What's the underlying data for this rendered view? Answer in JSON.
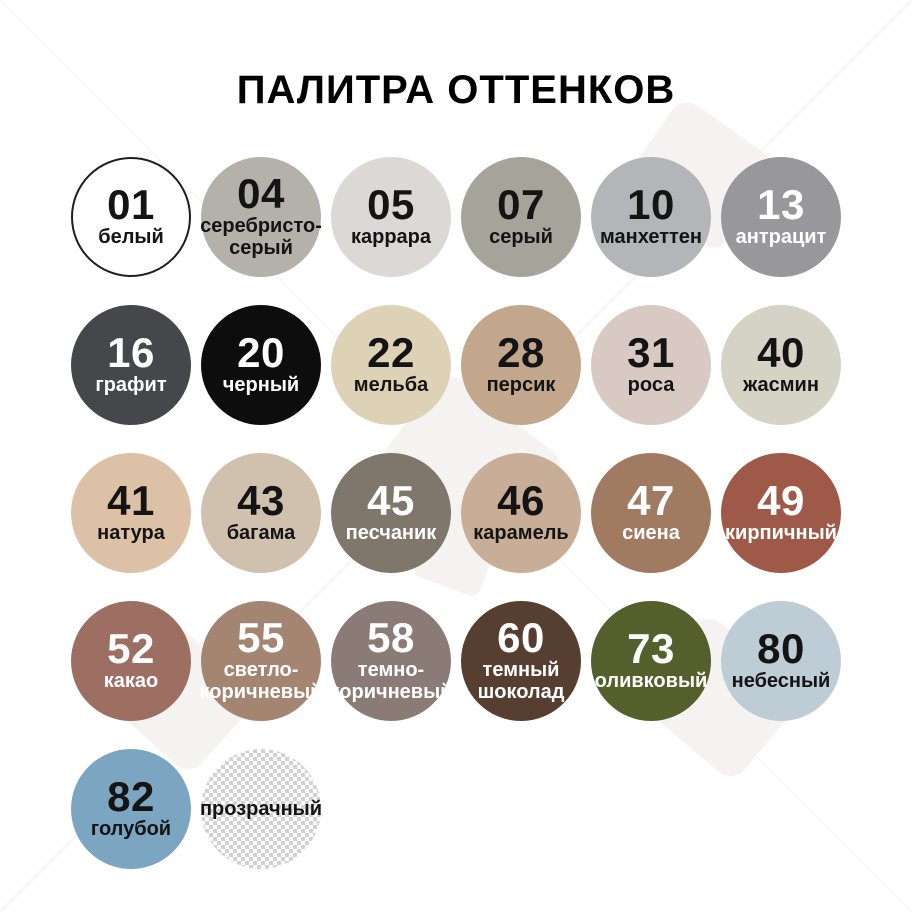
{
  "title": "ПАЛИТРА ОТТЕНКОВ",
  "colors": {
    "background": "#ffffff",
    "title_text": "#000000",
    "outline": "#1e1e1e",
    "checker": "#d2d2d2",
    "dark_text": "#141414",
    "light_text": "#ffffff",
    "watermark_shape": "#f4f3f1"
  },
  "palette": {
    "swatches": [
      {
        "number": "01",
        "name": "белый",
        "color": "#ffffff",
        "text": "dark",
        "outlined": true
      },
      {
        "number": "04",
        "name": "серебристо-\nсерый",
        "color": "#b4b0aa",
        "text": "dark"
      },
      {
        "number": "05",
        "name": "каррара",
        "color": "#dbd9d5",
        "text": "dark"
      },
      {
        "number": "07",
        "name": "серый",
        "color": "#a5a49b",
        "text": "dark"
      },
      {
        "number": "10",
        "name": "манхеттен",
        "color": "#b4b5b8",
        "text": "dark"
      },
      {
        "number": "13",
        "name": "антрацит",
        "color": "#98989a",
        "text": "light"
      },
      {
        "number": "16",
        "name": "графит",
        "color": "#45474a",
        "text": "light"
      },
      {
        "number": "20",
        "name": "черный",
        "color": "#0d0d0d",
        "text": "light"
      },
      {
        "number": "22",
        "name": "мельба",
        "color": "#ddd2b6",
        "text": "dark"
      },
      {
        "number": "28",
        "name": "персик",
        "color": "#c3a78c",
        "text": "dark"
      },
      {
        "number": "31",
        "name": "роса",
        "color": "#d8c9c3",
        "text": "dark"
      },
      {
        "number": "40",
        "name": "жасмин",
        "color": "#d5d2c6",
        "text": "dark"
      },
      {
        "number": "41",
        "name": "натура",
        "color": "#dcc1a6",
        "text": "dark"
      },
      {
        "number": "43",
        "name": "багама",
        "color": "#cfc1ad",
        "text": "dark"
      },
      {
        "number": "45",
        "name": "песчаник",
        "color": "#80776c",
        "text": "light"
      },
      {
        "number": "46",
        "name": "карамель",
        "color": "#c9ae97",
        "text": "dark"
      },
      {
        "number": "47",
        "name": "сиена",
        "color": "#a17b61",
        "text": "light"
      },
      {
        "number": "49",
        "name": "кирпичный",
        "color": "#9e5948",
        "text": "light"
      },
      {
        "number": "52",
        "name": "какао",
        "color": "#9c6f62",
        "text": "light"
      },
      {
        "number": "55",
        "name": "светло-\nкоричневый",
        "color": "#a48571",
        "text": "light"
      },
      {
        "number": "58",
        "name": "темно-\nкоричневый",
        "color": "#8a7b77",
        "text": "light"
      },
      {
        "number": "60",
        "name": "темный\nшоколад",
        "color": "#563e30",
        "text": "light"
      },
      {
        "number": "73",
        "name": "оливковый",
        "color": "#545f2c",
        "text": "light"
      },
      {
        "number": "80",
        "name": "небесный",
        "color": "#becdd5",
        "text": "dark"
      },
      {
        "number": "82",
        "name": "голубой",
        "color": "#7ca5c1",
        "text": "dark"
      },
      {
        "number": "",
        "name": "прозрачный",
        "color": "checker",
        "text": "dark",
        "checker": true
      }
    ]
  }
}
